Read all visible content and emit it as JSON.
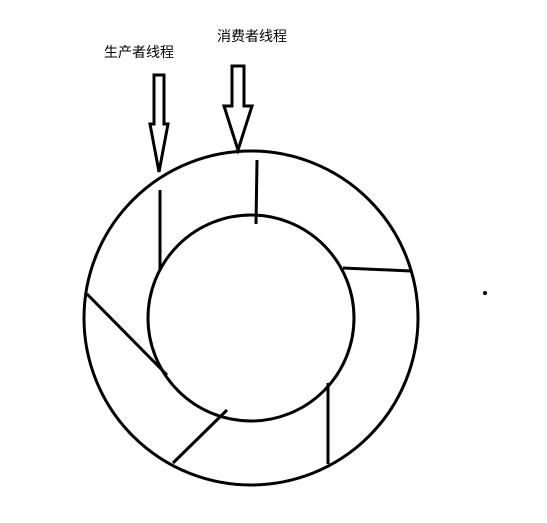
{
  "labels": {
    "producer_thread": "生产者线程",
    "consumer_thread": "消费者线程"
  },
  "ring_buffer": {
    "slots": 6
  },
  "colors": {
    "stroke": "#000000",
    "background": "#ffffff"
  }
}
